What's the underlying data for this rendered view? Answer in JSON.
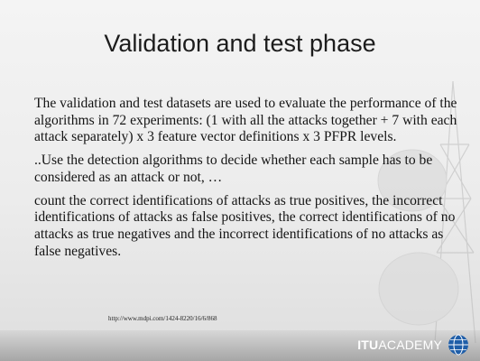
{
  "slide": {
    "title": "Validation and test phase",
    "paragraphs": [
      "The validation and test datasets are used to evaluate the performance of the algorithms in 72 experiments: (1 with all the attacks together + 7 with each attack separately) x 3 feature vector definitions x 3 PFPR levels.",
      "..Use the detection algorithms to decide whether each sample has to be considered as an attack or not, …",
      "count the correct identifications of attacks as true positives, the incorrect identifications of attacks as false positives, the correct identifications of no attacks as true negatives and the incorrect identifications of no attacks as false negatives."
    ],
    "source": "http://www.mdpi.com/1424-8220/16/6/868"
  },
  "footer": {
    "logo_itu": "ITU",
    "logo_academy": "ACADEMY",
    "logo_icon": "itu-globe-icon"
  },
  "colors": {
    "background": "#ececec",
    "text": "#141414",
    "itu_blue": "#1f5ea8"
  }
}
